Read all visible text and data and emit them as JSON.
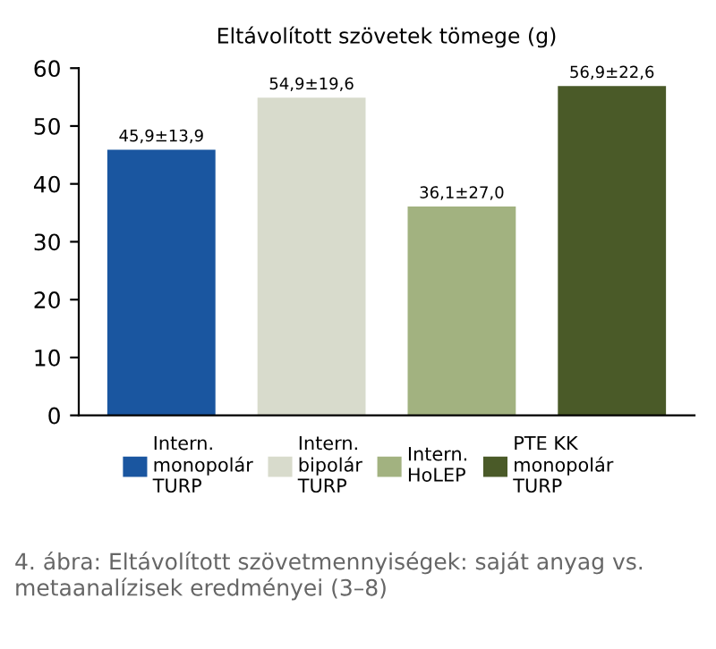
{
  "chart_data": {
    "type": "bar",
    "title": "Eltávolított szövetek tömege (g)",
    "categories": [
      null,
      null,
      null,
      null
    ],
    "series": [
      {
        "name": "Intern.\nmonopolár\nTURP",
        "color": "#1a56a0",
        "values": [
          45.9,
          null,
          null,
          null
        ],
        "value_labels": [
          "45,9±13,9",
          null,
          null,
          null
        ]
      },
      {
        "name": "Intern.\nbipolár\nTURP",
        "color": "#d8dbcc",
        "values": [
          null,
          54.9,
          null,
          null
        ],
        "value_labels": [
          null,
          "54,9±19,6",
          null,
          null
        ]
      },
      {
        "name": "Intern.\nHoLEP",
        "color": "#a2b280",
        "values": [
          null,
          null,
          36.1,
          null
        ],
        "value_labels": [
          null,
          null,
          "36,1±27,0",
          null
        ]
      },
      {
        "name": "PTE KK\nmonopolár\nTURP",
        "color": "#4a5a28",
        "values": [
          null,
          null,
          null,
          56.9
        ],
        "value_labels": [
          null,
          null,
          null,
          "56,9±22,6"
        ]
      }
    ],
    "ylim": [
      0,
      60
    ],
    "yticks": [
      0,
      10,
      20,
      30,
      40,
      50,
      60
    ],
    "grid": false,
    "legend": "bottom",
    "annotations": [
      "4. ábra: Eltávolított szövetmennyiségek: saját anyag vs. metaanalízisek eredményei (3–8)"
    ]
  }
}
